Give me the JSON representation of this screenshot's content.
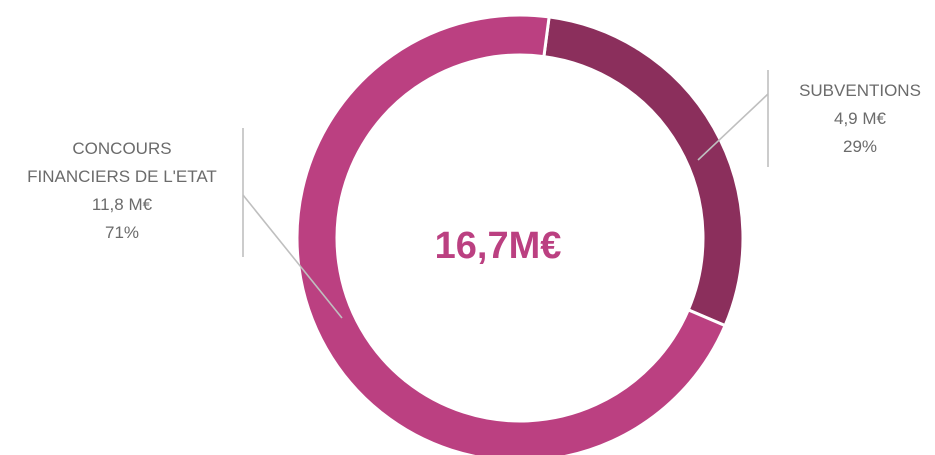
{
  "chart_data": {
    "type": "pie",
    "variant": "donut",
    "center_label": "16,7M€",
    "slices": [
      {
        "name": "SUBVENTIONS",
        "value_label": "4,9 M€",
        "percent_label": "29%",
        "value": 4.9,
        "percent": 29,
        "color": "#8B2F5C"
      },
      {
        "name_lines": [
          "CONCOURS",
          "FINANCIERS DE L'ETAT"
        ],
        "value_label": "11,8 M€",
        "percent_label": "71%",
        "value": 11.8,
        "percent": 71,
        "color": "#BB4081"
      }
    ]
  },
  "colors": {
    "center_text": "#BB4081",
    "label_text": "#6b6b6b",
    "leader_line": "#bfbfbf",
    "background": "#ffffff"
  }
}
